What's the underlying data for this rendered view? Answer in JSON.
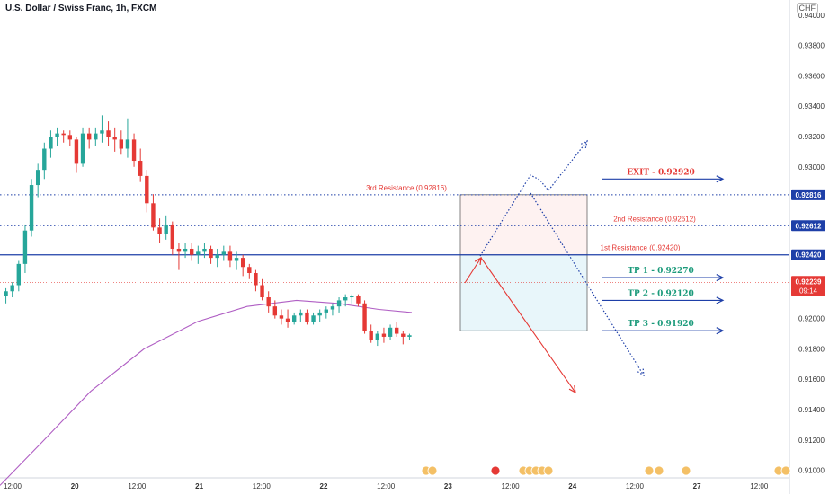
{
  "chart_title": "U.S. Dollar / Swiss Franc, 1h, FXCM",
  "currency_badge": "CHF",
  "chart_data": {
    "type": "candlestick",
    "symbol": "USD/CHF",
    "timeframe": "1h",
    "yaxis": {
      "range": [
        0.9095,
        0.941
      ],
      "ticks": [
        "0.94000",
        "0.93800",
        "0.93600",
        "0.93400",
        "0.93200",
        "0.93000",
        "0.92800",
        "0.92600",
        "0.92400",
        "0.92200",
        "0.92000",
        "0.91800",
        "0.91600",
        "0.91400",
        "0.91200",
        "0.91000"
      ]
    },
    "xaxis": {
      "labels": [
        "12:00",
        "20",
        "12:00",
        "21",
        "12:00",
        "22",
        "12:00",
        "23",
        "12:00",
        "24",
        "12:00",
        "27",
        "12:00"
      ]
    },
    "candles": [
      [
        0.9215,
        0.922,
        0.921,
        0.9218
      ],
      [
        0.9218,
        0.9224,
        0.9214,
        0.9222
      ],
      [
        0.9222,
        0.9238,
        0.9218,
        0.9236
      ],
      [
        0.9236,
        0.9262,
        0.923,
        0.9258
      ],
      [
        0.9258,
        0.9292,
        0.9254,
        0.9288
      ],
      [
        0.9288,
        0.9302,
        0.928,
        0.9298
      ],
      [
        0.9298,
        0.9316,
        0.9292,
        0.9312
      ],
      [
        0.9312,
        0.9324,
        0.9306,
        0.932
      ],
      [
        0.932,
        0.9326,
        0.9314,
        0.9322
      ],
      [
        0.9322,
        0.9324,
        0.9316,
        0.9321
      ],
      [
        0.9321,
        0.9324,
        0.9314,
        0.9318
      ],
      [
        0.9318,
        0.932,
        0.9296,
        0.9302
      ],
      [
        0.9302,
        0.9326,
        0.93,
        0.9322
      ],
      [
        0.9322,
        0.9326,
        0.9312,
        0.9318
      ],
      [
        0.9318,
        0.9326,
        0.9314,
        0.9322
      ],
      [
        0.9322,
        0.9334,
        0.9316,
        0.9324
      ],
      [
        0.9324,
        0.933,
        0.9314,
        0.932
      ],
      [
        0.932,
        0.9326,
        0.931,
        0.9318
      ],
      [
        0.9318,
        0.9324,
        0.9308,
        0.9312
      ],
      [
        0.9312,
        0.9332,
        0.9306,
        0.9318
      ],
      [
        0.9318,
        0.9322,
        0.93,
        0.9304
      ],
      [
        0.9304,
        0.9312,
        0.929,
        0.9294
      ],
      [
        0.9294,
        0.9298,
        0.927,
        0.9276
      ],
      [
        0.9276,
        0.9282,
        0.9258,
        0.926
      ],
      [
        0.926,
        0.9266,
        0.925,
        0.9256
      ],
      [
        0.9256,
        0.9268,
        0.9252,
        0.9262
      ],
      [
        0.9262,
        0.9264,
        0.9242,
        0.9246
      ],
      [
        0.9246,
        0.925,
        0.9232,
        0.9244
      ],
      [
        0.9244,
        0.925,
        0.924,
        0.9246
      ],
      [
        0.9246,
        0.925,
        0.9238,
        0.9242
      ],
      [
        0.9242,
        0.9248,
        0.9236,
        0.9244
      ],
      [
        0.9244,
        0.925,
        0.924,
        0.9246
      ],
      [
        0.9246,
        0.9248,
        0.9236,
        0.924
      ],
      [
        0.924,
        0.9246,
        0.9234,
        0.9242
      ],
      [
        0.9242,
        0.9248,
        0.9238,
        0.9244
      ],
      [
        0.9244,
        0.9248,
        0.9234,
        0.9238
      ],
      [
        0.9238,
        0.9244,
        0.9232,
        0.924
      ],
      [
        0.924,
        0.9242,
        0.9228,
        0.9234
      ],
      [
        0.9234,
        0.9236,
        0.9226,
        0.923
      ],
      [
        0.923,
        0.9232,
        0.9218,
        0.9222
      ],
      [
        0.9222,
        0.9226,
        0.9212,
        0.9214
      ],
      [
        0.9214,
        0.9218,
        0.9204,
        0.9208
      ],
      [
        0.9208,
        0.9212,
        0.92,
        0.9202
      ],
      [
        0.9202,
        0.9206,
        0.9196,
        0.92
      ],
      [
        0.92,
        0.9206,
        0.9194,
        0.9198
      ],
      [
        0.9198,
        0.9204,
        0.9196,
        0.9202
      ],
      [
        0.9202,
        0.9206,
        0.9198,
        0.9204
      ],
      [
        0.9204,
        0.9206,
        0.9196,
        0.9198
      ],
      [
        0.9198,
        0.9204,
        0.9196,
        0.9202
      ],
      [
        0.9202,
        0.9206,
        0.9198,
        0.9204
      ],
      [
        0.9204,
        0.9208,
        0.92,
        0.9206
      ],
      [
        0.9206,
        0.921,
        0.9202,
        0.9208
      ],
      [
        0.9208,
        0.9214,
        0.9204,
        0.9212
      ],
      [
        0.9212,
        0.9216,
        0.9208,
        0.9214
      ],
      [
        0.9214,
        0.9216,
        0.921,
        0.9215
      ],
      [
        0.9215,
        0.9216,
        0.9208,
        0.921
      ],
      [
        0.921,
        0.9212,
        0.919,
        0.9192
      ],
      [
        0.9192,
        0.9196,
        0.9184,
        0.9186
      ],
      [
        0.9186,
        0.9192,
        0.9182,
        0.919
      ],
      [
        0.919,
        0.9194,
        0.9184,
        0.9188
      ],
      [
        0.9188,
        0.9196,
        0.9186,
        0.9194
      ],
      [
        0.9194,
        0.9198,
        0.9188,
        0.919
      ],
      [
        0.919,
        0.9192,
        0.9183,
        0.9188
      ],
      [
        0.9188,
        0.919,
        0.9186,
        0.9189
      ]
    ],
    "moving_average": [
      [
        0,
        0.909
      ],
      [
        0.1,
        0.9118
      ],
      [
        0.22,
        0.9152
      ],
      [
        0.35,
        0.918
      ],
      [
        0.48,
        0.9198
      ],
      [
        0.6,
        0.9208
      ],
      [
        0.72,
        0.9212
      ],
      [
        0.82,
        0.921
      ],
      [
        0.92,
        0.9206
      ],
      [
        1.0,
        0.9204
      ]
    ],
    "price_levels": [
      {
        "label": "3rd Resistance (0.92816)",
        "value": 0.92816,
        "axis_label": "0.92816",
        "color": "#1e3fa8",
        "style": "dotted"
      },
      {
        "label": "2nd Resistance (0.92612)",
        "value": 0.92612,
        "axis_label": "0.92612",
        "color": "#1e3fa8",
        "style": "dotted"
      },
      {
        "label": "1st Resistance (0.92420)",
        "value": 0.9242,
        "axis_label": "0.92420",
        "color": "#1e3fa8",
        "style": "solid"
      }
    ],
    "current_price": {
      "value": "0.92239",
      "countdown": "09:14",
      "color": "#e53935"
    },
    "targets": [
      {
        "label": "EXIT - 0.92920",
        "value": 0.9292,
        "color": "#e53935"
      },
      {
        "label": "TP 1 - 0.92270",
        "value": 0.9227,
        "color": "#1a9a7a"
      },
      {
        "label": "TP 2 - 0.92120",
        "value": 0.9212,
        "color": "#1a9a7a"
      },
      {
        "label": "TP 3 - 0.91920",
        "value": 0.9192,
        "color": "#1a9a7a"
      }
    ],
    "risk_box": {
      "top": 0.92816,
      "mid": 0.9242,
      "bottom": 0.9192
    },
    "colors": {
      "up": "#26a69a",
      "down": "#e53935",
      "ma": "#b05fc4",
      "level": "#1e3fa8"
    }
  }
}
